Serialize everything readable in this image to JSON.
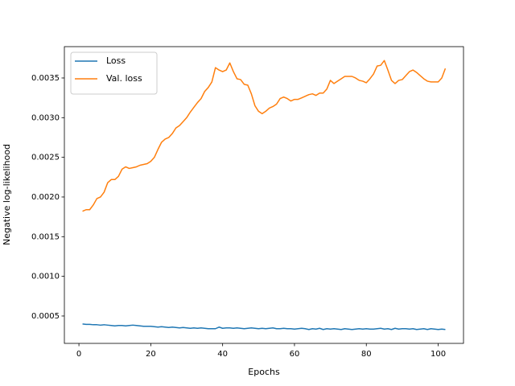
{
  "chart_data": {
    "type": "line",
    "xlabel": "Epochs",
    "ylabel": "Negative log-likelihood",
    "x": [
      1,
      2,
      3,
      4,
      5,
      6,
      7,
      8,
      9,
      10,
      11,
      12,
      13,
      14,
      15,
      16,
      17,
      18,
      19,
      20,
      21,
      22,
      23,
      24,
      25,
      26,
      27,
      28,
      29,
      30,
      31,
      32,
      33,
      34,
      35,
      36,
      37,
      38,
      39,
      40,
      41,
      42,
      43,
      44,
      45,
      46,
      47,
      48,
      49,
      50,
      51,
      52,
      53,
      54,
      55,
      56,
      57,
      58,
      59,
      60,
      61,
      62,
      63,
      64,
      65,
      66,
      67,
      68,
      69,
      70,
      71,
      72,
      73,
      74,
      75,
      76,
      77,
      78,
      79,
      80,
      81,
      82,
      83,
      84,
      85,
      86,
      87,
      88,
      89,
      90,
      91,
      92,
      93,
      94,
      95,
      96,
      97,
      98,
      99,
      100,
      101,
      102
    ],
    "series": [
      {
        "name": "Loss",
        "color": "#1f77b4",
        "values": [
          0.0004,
          0.000395,
          0.000395,
          0.00039,
          0.00039,
          0.000385,
          0.00039,
          0.000385,
          0.00038,
          0.000375,
          0.00038,
          0.00038,
          0.000375,
          0.00038,
          0.000385,
          0.00038,
          0.000375,
          0.00037,
          0.00037,
          0.00037,
          0.000365,
          0.00036,
          0.000365,
          0.00036,
          0.000355,
          0.00036,
          0.000355,
          0.00035,
          0.000355,
          0.00035,
          0.000345,
          0.00035,
          0.000345,
          0.00035,
          0.000345,
          0.00034,
          0.00034,
          0.00034,
          0.00036,
          0.000345,
          0.00035,
          0.00035,
          0.000345,
          0.00035,
          0.000345,
          0.00034,
          0.000345,
          0.00035,
          0.000345,
          0.00034,
          0.000345,
          0.00034,
          0.000345,
          0.00035,
          0.00034,
          0.00034,
          0.000345,
          0.00034,
          0.00034,
          0.000335,
          0.00034,
          0.000345,
          0.00034,
          0.00033,
          0.00034,
          0.000335,
          0.000345,
          0.00033,
          0.00034,
          0.000335,
          0.00034,
          0.000335,
          0.00033,
          0.00034,
          0.000335,
          0.00033,
          0.000335,
          0.00034,
          0.000335,
          0.00034,
          0.000335,
          0.000335,
          0.00034,
          0.000345,
          0.000335,
          0.00034,
          0.00033,
          0.000345,
          0.000335,
          0.00034,
          0.00034,
          0.000335,
          0.00034,
          0.00033,
          0.000335,
          0.00034,
          0.00033,
          0.00034,
          0.000335,
          0.00033,
          0.000335,
          0.00033
        ]
      },
      {
        "name": "Val. loss",
        "color": "#ff7f0e",
        "values": [
          0.00182,
          0.00184,
          0.00184,
          0.0019,
          0.00198,
          0.002,
          0.00206,
          0.00218,
          0.00222,
          0.00222,
          0.00226,
          0.00235,
          0.00238,
          0.00236,
          0.00237,
          0.00238,
          0.0024,
          0.00241,
          0.00242,
          0.00245,
          0.0025,
          0.0026,
          0.00269,
          0.00273,
          0.00275,
          0.0028,
          0.00287,
          0.0029,
          0.00295,
          0.003,
          0.00307,
          0.00313,
          0.00319,
          0.00324,
          0.00333,
          0.00338,
          0.00345,
          0.00363,
          0.0036,
          0.00358,
          0.0036,
          0.00369,
          0.00358,
          0.00349,
          0.00348,
          0.00342,
          0.00341,
          0.0033,
          0.00315,
          0.00308,
          0.00305,
          0.00308,
          0.00312,
          0.00314,
          0.00317,
          0.00324,
          0.00326,
          0.00324,
          0.00321,
          0.00323,
          0.00323,
          0.00325,
          0.00327,
          0.00329,
          0.0033,
          0.00328,
          0.00331,
          0.00331,
          0.00336,
          0.00347,
          0.00343,
          0.00346,
          0.00349,
          0.00352,
          0.00352,
          0.00352,
          0.0035,
          0.00347,
          0.00346,
          0.00344,
          0.00349,
          0.00355,
          0.00365,
          0.00366,
          0.00372,
          0.0036,
          0.00347,
          0.00343,
          0.00347,
          0.00348,
          0.00353,
          0.00358,
          0.0036,
          0.00357,
          0.00353,
          0.00349,
          0.00346,
          0.00345,
          0.00345,
          0.00345,
          0.0035,
          0.00362
        ]
      }
    ],
    "xlim": [
      -4.05,
      107.05
    ],
    "xticks": [
      0,
      20,
      40,
      60,
      80,
      100
    ],
    "ylim": [
      0.000155,
      0.003895
    ],
    "yticks": [
      0.0005,
      {
        "value": 0.001,
        "label": "0.0010"
      },
      0.0015,
      {
        "value": 0.002,
        "label": "0.0020"
      },
      0.0025,
      {
        "value": 0.003,
        "label": "0.0030"
      },
      0.0035
    ],
    "legend": "upper left",
    "grid": false
  }
}
